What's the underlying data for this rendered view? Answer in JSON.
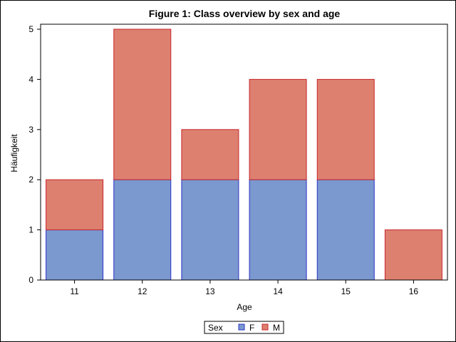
{
  "chart_data": {
    "type": "bar",
    "stacked": true,
    "title": "Figure 1: Class overview by sex and age",
    "xlabel": "Age",
    "ylabel": "Häufigkeit",
    "categories": [
      "11",
      "12",
      "13",
      "14",
      "15",
      "16"
    ],
    "series": [
      {
        "name": "F",
        "values": [
          1,
          2,
          2,
          2,
          2,
          0
        ],
        "color": "#7b98cf",
        "stroke": "#2b33c8"
      },
      {
        "name": "M",
        "values": [
          1,
          3,
          1,
          2,
          2,
          1
        ],
        "color": "#dd8070",
        "stroke": "#c8262b"
      }
    ],
    "ylim": [
      0,
      5
    ],
    "yticks": [
      "0",
      "1",
      "2",
      "3",
      "4",
      "5"
    ],
    "grid": false,
    "legend": {
      "title": "Sex",
      "position": "bottom-center"
    }
  }
}
